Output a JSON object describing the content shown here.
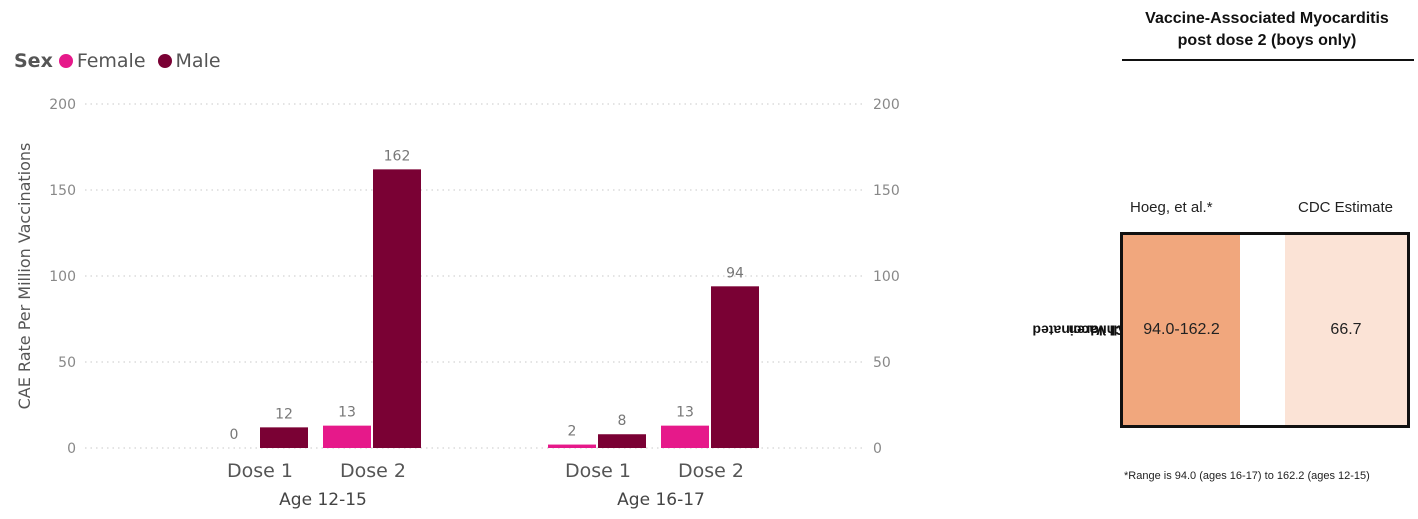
{
  "chart_data": {
    "type": "bar",
    "groups": [
      "Age 12-15",
      "Age 16-17"
    ],
    "categories": [
      "Dose 1",
      "Dose 2"
    ],
    "series": [
      {
        "name": "Female",
        "color": "#e6198a",
        "values": [
          [
            0,
            13
          ],
          [
            2,
            13
          ]
        ]
      },
      {
        "name": "Male",
        "color": "#7a0134",
        "values": [
          [
            12,
            162
          ],
          [
            8,
            94
          ]
        ]
      }
    ],
    "ylabel": "CAE Rate Per Million Vaccinations",
    "ylim": [
      0,
      200
    ],
    "yticks": [
      0,
      50,
      100,
      150,
      200
    ],
    "grid": "dotted horizontal",
    "legend": {
      "title": "Sex",
      "placement": "top-left"
    }
  },
  "panel": {
    "title_line1": "Vaccine-Associated Myocarditis",
    "title_line2": "post dose 2 (boys only)",
    "columns": [
      "Hoeg, et al.*",
      "CDC Estimate"
    ],
    "row_label_line1": "All Vaccinated",
    "row_label_line2": "Children",
    "cells": [
      {
        "value": "94.0-162.2",
        "color": "#f1a77d"
      },
      {
        "value": "66.7",
        "color": "#fbe3d6"
      }
    ],
    "footnote": "*Range is 94.0 (ages 16-17) to 162.2 (ages 12-15)"
  }
}
